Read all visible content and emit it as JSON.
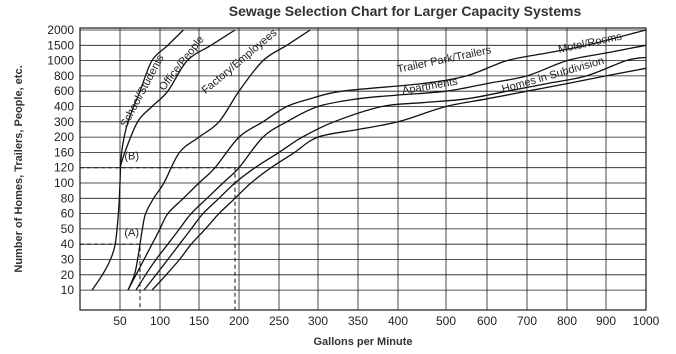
{
  "chart_data": {
    "type": "line",
    "title": "Sewage Selection Chart for Larger Capacity Systems",
    "xlabel": "Gallons per Minute",
    "ylabel": "Number of Homes, Trailers, People, etc.",
    "x_ticks": [
      "50",
      "100",
      "150",
      "200",
      "250",
      "300",
      "350",
      "400",
      "500",
      "600",
      "700",
      "800",
      "900",
      "1000"
    ],
    "y_ticks": [
      "10",
      "20",
      "30",
      "40",
      "50",
      "60",
      "80",
      "100",
      "120",
      "160",
      "200",
      "300",
      "400",
      "600",
      "800",
      "1000",
      "1500",
      "2000"
    ],
    "grid": true,
    "series": [
      {
        "name": "School/Students",
        "points": [
          [
            15,
            10
          ],
          [
            28,
            20
          ],
          [
            38,
            30
          ],
          [
            44,
            40
          ],
          [
            48,
            60
          ],
          [
            50,
            100
          ],
          [
            52,
            160
          ],
          [
            60,
            300
          ],
          [
            75,
            600
          ],
          [
            90,
            1000
          ],
          [
            110,
            1500
          ],
          [
            130,
            2000
          ]
        ]
      },
      {
        "name": "Office/People",
        "points": [
          [
            50,
            120
          ],
          [
            56,
            160
          ],
          [
            72,
            300
          ],
          [
            90,
            400
          ],
          [
            110,
            600
          ],
          [
            135,
            1000
          ],
          [
            165,
            1500
          ],
          [
            195,
            2000
          ]
        ]
      },
      {
        "name": "Factory/Employees",
        "points": [
          [
            60,
            10
          ],
          [
            68,
            20
          ],
          [
            72,
            30
          ],
          [
            75,
            40
          ],
          [
            78,
            50
          ],
          [
            82,
            60
          ],
          [
            92,
            80
          ],
          [
            105,
            100
          ],
          [
            125,
            160
          ],
          [
            150,
            200
          ],
          [
            175,
            300
          ],
          [
            200,
            600
          ],
          [
            230,
            1000
          ],
          [
            260,
            1500
          ],
          [
            290,
            2000
          ]
        ]
      },
      {
        "name": "Trailer Park/Trailers",
        "points": [
          [
            60,
            10
          ],
          [
            70,
            20
          ],
          [
            80,
            30
          ],
          [
            90,
            40
          ],
          [
            100,
            50
          ],
          [
            110,
            60
          ],
          [
            130,
            80
          ],
          [
            150,
            100
          ],
          [
            170,
            120
          ],
          [
            200,
            200
          ],
          [
            230,
            300
          ],
          [
            260,
            400
          ],
          [
            290,
            500
          ],
          [
            330,
            600
          ],
          [
            450,
            700
          ],
          [
            550,
            800
          ],
          [
            650,
            1000
          ],
          [
            750,
            1250
          ],
          [
            850,
            1500
          ],
          [
            1000,
            2000
          ]
        ]
      },
      {
        "name": "Motel/Rooms",
        "points": [
          [
            70,
            10
          ],
          [
            82,
            20
          ],
          [
            95,
            30
          ],
          [
            110,
            40
          ],
          [
            125,
            50
          ],
          [
            140,
            60
          ],
          [
            160,
            80
          ],
          [
            180,
            100
          ],
          [
            200,
            120
          ],
          [
            230,
            200
          ],
          [
            260,
            300
          ],
          [
            300,
            400
          ],
          [
            350,
            500
          ],
          [
            400,
            550
          ],
          [
            500,
            600
          ],
          [
            600,
            700
          ],
          [
            700,
            800
          ],
          [
            800,
            1000
          ],
          [
            900,
            1250
          ],
          [
            1000,
            1500
          ]
        ]
      },
      {
        "name": "Apartments",
        "points": [
          [
            80,
            10
          ],
          [
            95,
            20
          ],
          [
            110,
            30
          ],
          [
            125,
            40
          ],
          [
            140,
            50
          ],
          [
            155,
            60
          ],
          [
            175,
            80
          ],
          [
            195,
            100
          ],
          [
            220,
            120
          ],
          [
            250,
            160
          ],
          [
            280,
            200
          ],
          [
            320,
            300
          ],
          [
            380,
            400
          ],
          [
            450,
            450
          ],
          [
            550,
            500
          ],
          [
            650,
            600
          ],
          [
            750,
            700
          ],
          [
            850,
            800
          ],
          [
            950,
            1000
          ],
          [
            1000,
            1100
          ]
        ]
      },
      {
        "name": "Homes in Subdivision",
        "points": [
          [
            90,
            10
          ],
          [
            108,
            20
          ],
          [
            125,
            30
          ],
          [
            140,
            40
          ],
          [
            158,
            50
          ],
          [
            175,
            60
          ],
          [
            195,
            80
          ],
          [
            215,
            100
          ],
          [
            240,
            120
          ],
          [
            270,
            160
          ],
          [
            300,
            200
          ],
          [
            350,
            250
          ],
          [
            400,
            300
          ],
          [
            500,
            400
          ],
          [
            600,
            500
          ],
          [
            700,
            600
          ],
          [
            800,
            700
          ],
          [
            900,
            800
          ],
          [
            1000,
            900
          ]
        ]
      }
    ],
    "annotations": [
      {
        "label": "(A)",
        "x": 75,
        "y": 40
      },
      {
        "label": "(B)",
        "x": 195,
        "y": 120
      }
    ]
  }
}
